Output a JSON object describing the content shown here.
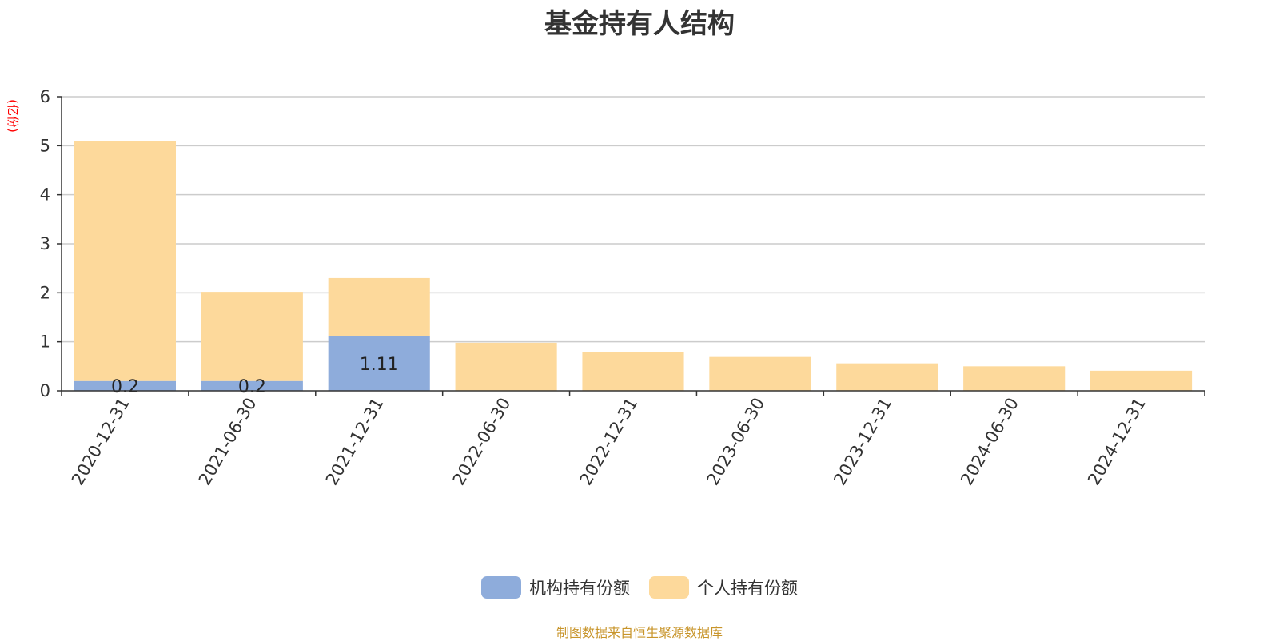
{
  "chart_data": {
    "type": "bar",
    "stacked": true,
    "title": "基金持有人结构",
    "ylabel": "(亿份)",
    "xlabel": "",
    "ylim": [
      0,
      6
    ],
    "yticks": [
      0,
      1,
      2,
      3,
      4,
      5,
      6
    ],
    "grid": true,
    "legend_position": "bottom",
    "categories": [
      "2020-12-31",
      "2021-06-30",
      "2021-12-31",
      "2022-06-30",
      "2022-12-31",
      "2023-06-30",
      "2023-12-31",
      "2024-06-30",
      "2024-12-31"
    ],
    "series": [
      {
        "name": "机构持有份额",
        "color": "#8eacdb",
        "values": [
          0.2,
          0.2,
          1.11,
          0,
          0,
          0,
          0,
          0,
          0
        ],
        "labels": [
          "0.2",
          "0.2",
          "1.11",
          "",
          "",
          "",
          "",
          "",
          ""
        ]
      },
      {
        "name": "个人持有份额",
        "color": "#fdd99b",
        "values": [
          4.9,
          1.82,
          1.19,
          0.98,
          0.79,
          0.69,
          0.56,
          0.5,
          0.41
        ],
        "labels": [
          "",
          "",
          "",
          "",
          "",
          "",
          "",
          "",
          ""
        ]
      }
    ],
    "source_note": "制图数据来自恒生聚源数据库"
  }
}
